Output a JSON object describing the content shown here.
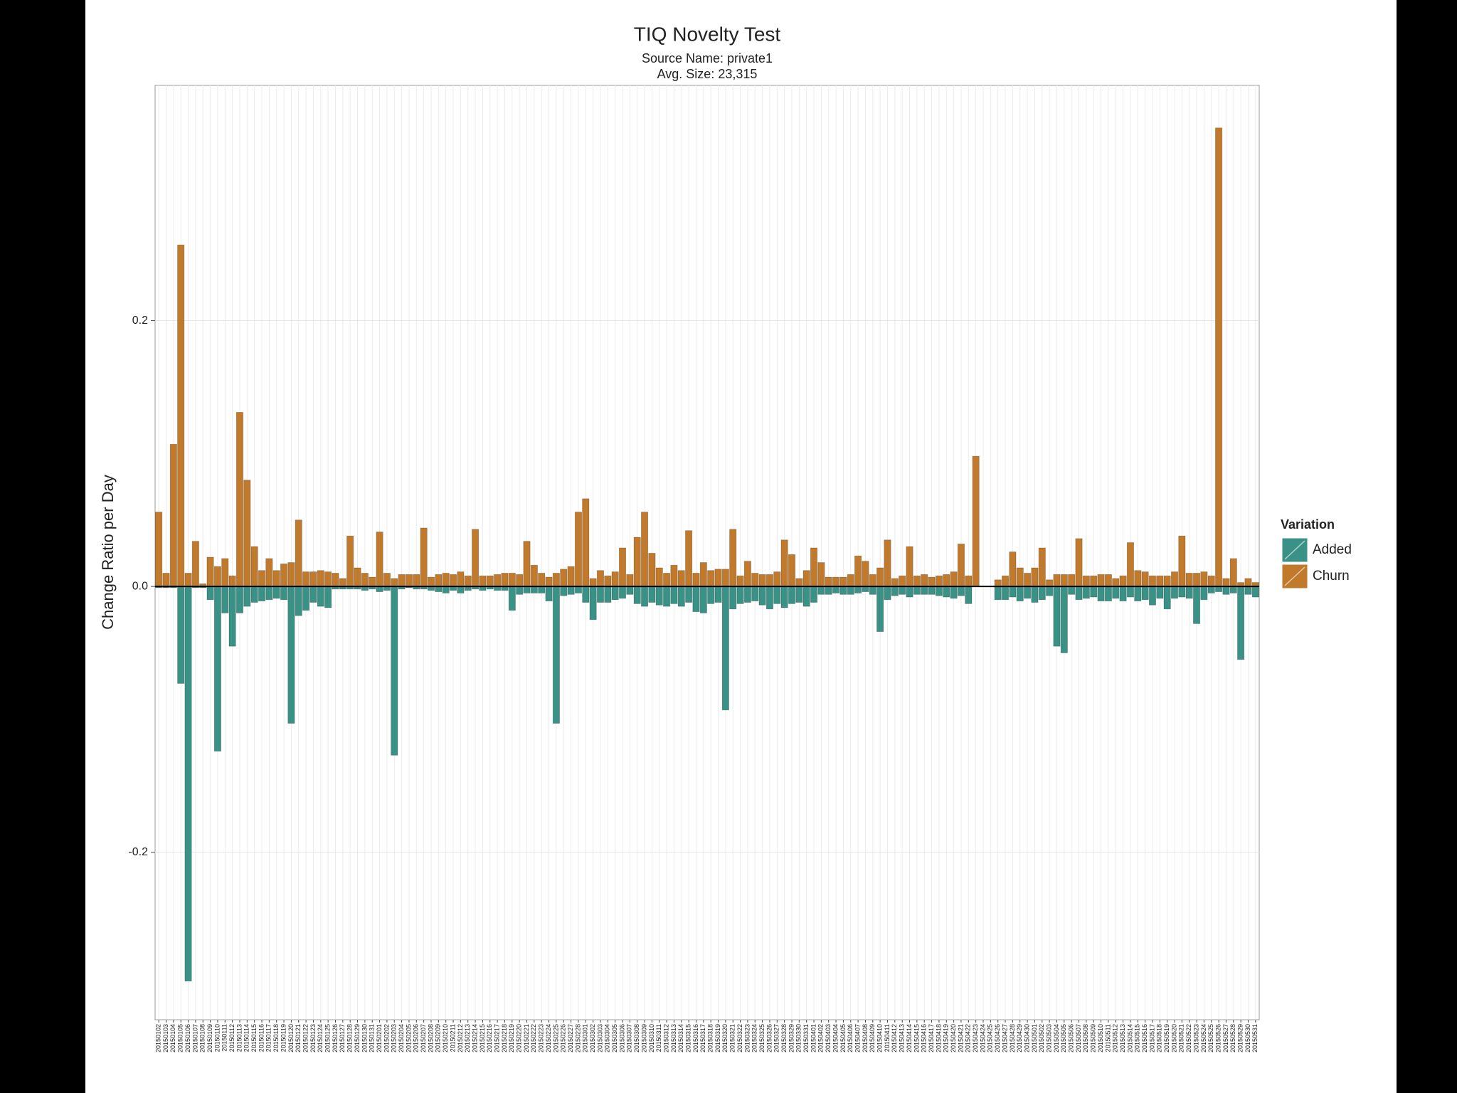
{
  "chart_data": {
    "type": "bar",
    "title": "TIQ Novelty Test",
    "subtitle": [
      "Source Name: private1",
      "Avg. Size: 23,315"
    ],
    "y_label": "Change Ratio per Day",
    "legend_title": "Variation",
    "categories": [
      "20150102",
      "20150103",
      "20150104",
      "20150105",
      "20150106",
      "20150107",
      "20150108",
      "20150109",
      "20150110",
      "20150111",
      "20150112",
      "20150113",
      "20150114",
      "20150115",
      "20150116",
      "20150117",
      "20150118",
      "20150119",
      "20150120",
      "20150121",
      "20150122",
      "20150123",
      "20150124",
      "20150125",
      "20150126",
      "20150127",
      "20150128",
      "20150129",
      "20150130",
      "20150131",
      "20150201",
      "20150202",
      "20150203",
      "20150204",
      "20150205",
      "20150206",
      "20150207",
      "20150208",
      "20150209",
      "20150210",
      "20150211",
      "20150212",
      "20150213",
      "20150214",
      "20150215",
      "20150216",
      "20150217",
      "20150218",
      "20150219",
      "20150220",
      "20150221",
      "20150222",
      "20150223",
      "20150224",
      "20150225",
      "20150226",
      "20150227",
      "20150228",
      "20150301",
      "20150302",
      "20150303",
      "20150304",
      "20150305",
      "20150306",
      "20150307",
      "20150308",
      "20150309",
      "20150310",
      "20150311",
      "20150312",
      "20150313",
      "20150314",
      "20150315",
      "20150316",
      "20150317",
      "20150318",
      "20150319",
      "20150320",
      "20150321",
      "20150322",
      "20150323",
      "20150324",
      "20150325",
      "20150326",
      "20150327",
      "20150328",
      "20150329",
      "20150330",
      "20150331",
      "20150401",
      "20150402",
      "20150403",
      "20150404",
      "20150405",
      "20150406",
      "20150407",
      "20150408",
      "20150409",
      "20150410",
      "20150411",
      "20150412",
      "20150413",
      "20150414",
      "20150415",
      "20150416",
      "20150417",
      "20150418",
      "20150419",
      "20150420",
      "20150421",
      "20150422",
      "20150423",
      "20150424",
      "20150425",
      "20150426",
      "20150427",
      "20150428",
      "20150429",
      "20150430",
      "20150501",
      "20150502",
      "20150503",
      "20150504",
      "20150505",
      "20150506",
      "20150507",
      "20150508",
      "20150509",
      "20150510",
      "20150511",
      "20150512",
      "20150513",
      "20150514",
      "20150515",
      "20150516",
      "20150517",
      "20150518",
      "20150519",
      "20150520",
      "20150521",
      "20150522",
      "20150523",
      "20150524",
      "20150525",
      "20150526",
      "20150527",
      "20150528",
      "20150529",
      "20150530",
      "20150531"
    ],
    "series": [
      {
        "name": "Added",
        "color": "#3a9185",
        "values": [
          -0.001,
          -0.001,
          -0.001,
          -0.073,
          -0.297,
          -0.001,
          -0.001,
          -0.01,
          -0.124,
          -0.02,
          -0.045,
          -0.02,
          -0.015,
          -0.012,
          -0.011,
          -0.01,
          -0.009,
          -0.01,
          -0.103,
          -0.022,
          -0.018,
          -0.012,
          -0.015,
          -0.016,
          -0.002,
          -0.002,
          -0.002,
          -0.002,
          -0.003,
          -0.002,
          -0.004,
          -0.003,
          -0.127,
          -0.002,
          -0.001,
          -0.002,
          -0.002,
          -0.003,
          -0.004,
          -0.005,
          -0.003,
          -0.005,
          -0.003,
          -0.002,
          -0.003,
          -0.002,
          -0.003,
          -0.003,
          -0.018,
          -0.006,
          -0.005,
          -0.005,
          -0.005,
          -0.011,
          -0.103,
          -0.007,
          -0.006,
          -0.005,
          -0.012,
          -0.025,
          -0.012,
          -0.012,
          -0.01,
          -0.009,
          -0.006,
          -0.013,
          -0.015,
          -0.012,
          -0.014,
          -0.015,
          -0.013,
          -0.015,
          -0.012,
          -0.019,
          -0.02,
          -0.013,
          -0.012,
          -0.093,
          -0.017,
          -0.013,
          -0.012,
          -0.011,
          -0.014,
          -0.017,
          -0.013,
          -0.016,
          -0.013,
          -0.012,
          -0.015,
          -0.012,
          -0.006,
          -0.006,
          -0.005,
          -0.006,
          -0.006,
          -0.005,
          -0.004,
          -0.006,
          -0.034,
          -0.01,
          -0.007,
          -0.006,
          -0.008,
          -0.006,
          -0.006,
          -0.006,
          -0.007,
          -0.008,
          -0.009,
          -0.007,
          -0.013,
          0,
          0,
          0,
          -0.01,
          -0.01,
          -0.008,
          -0.011,
          -0.009,
          -0.012,
          -0.01,
          -0.007,
          -0.045,
          -0.05,
          -0.006,
          -0.01,
          -0.009,
          -0.008,
          -0.011,
          -0.011,
          -0.009,
          -0.011,
          -0.008,
          -0.011,
          -0.01,
          -0.014,
          -0.009,
          -0.017,
          -0.009,
          -0.008,
          -0.009,
          -0.028,
          -0.01,
          -0.005,
          -0.004,
          -0.006,
          -0.005,
          -0.055,
          -0.006,
          -0.008
        ]
      },
      {
        "name": "Churn",
        "color": "#c17a2c",
        "values": [
          0.056,
          0.01,
          0.107,
          0.257,
          0.01,
          0.034,
          0.002,
          0.022,
          0.015,
          0.021,
          0.008,
          0.131,
          0.08,
          0.03,
          0.012,
          0.021,
          0.012,
          0.017,
          0.018,
          0.05,
          0.011,
          0.011,
          0.012,
          0.011,
          0.01,
          0.006,
          0.038,
          0.014,
          0.01,
          0.007,
          0.041,
          0.01,
          0.006,
          0.009,
          0.009,
          0.009,
          0.044,
          0.007,
          0.009,
          0.01,
          0.009,
          0.011,
          0.008,
          0.043,
          0.008,
          0.008,
          0.009,
          0.01,
          0.01,
          0.009,
          0.034,
          0.016,
          0.01,
          0.007,
          0.01,
          0.013,
          0.015,
          0.056,
          0.066,
          0.006,
          0.012,
          0.008,
          0.011,
          0.029,
          0.009,
          0.037,
          0.056,
          0.025,
          0.014,
          0.01,
          0.016,
          0.012,
          0.042,
          0.01,
          0.018,
          0.012,
          0.013,
          0.013,
          0.043,
          0.008,
          0.019,
          0.01,
          0.009,
          0.009,
          0.011,
          0.035,
          0.024,
          0.006,
          0.012,
          0.029,
          0.018,
          0.007,
          0.007,
          0.007,
          0.009,
          0.023,
          0.019,
          0.009,
          0.014,
          0.035,
          0.006,
          0.008,
          0.03,
          0.008,
          0.009,
          0.007,
          0.008,
          0.009,
          0.011,
          0.032,
          0.008,
          0.098,
          0,
          0,
          0.005,
          0.008,
          0.026,
          0.014,
          0.01,
          0.014,
          0.029,
          0.005,
          0.009,
          0.009,
          0.009,
          0.036,
          0.008,
          0.008,
          0.009,
          0.009,
          0.006,
          0.008,
          0.033,
          0.012,
          0.011,
          0.008,
          0.008,
          0.008,
          0.011,
          0.038,
          0.01,
          0.01,
          0.011,
          0.008,
          0.345,
          0.006,
          0.021,
          0.003,
          0.006,
          0.003
        ]
      }
    ],
    "ylim": [
      -0.326,
      0.377
    ],
    "yticks": [
      -0.2,
      {
        "value": 0,
        "label": "0.0"
      },
      0.2
    ],
    "grid": true,
    "legend": "right"
  }
}
